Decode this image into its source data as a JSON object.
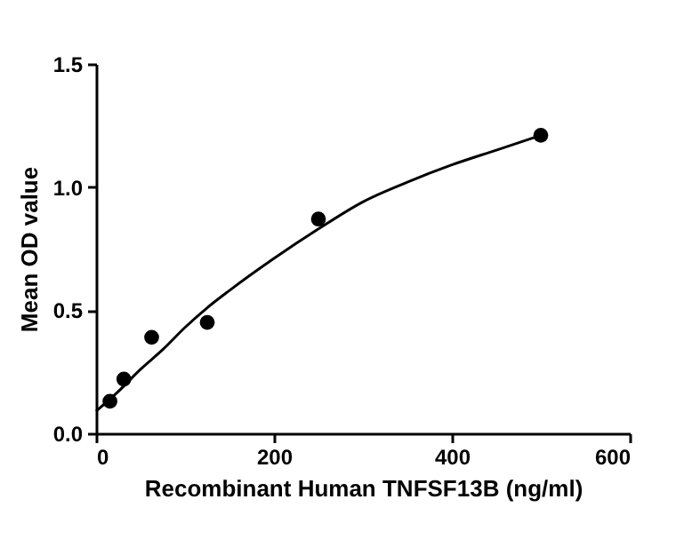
{
  "chart_data": {
    "type": "scatter",
    "xlabel": "Recombinant Human TNFSF13B (ng/ml)",
    "ylabel": "Mean OD value",
    "xlim": [
      0,
      600
    ],
    "xticks": [
      0,
      200,
      400,
      600
    ],
    "ylim": [
      0,
      1.5
    ],
    "yticks": [
      {
        "value": 0,
        "label": "0.0"
      },
      {
        "value": 0.5,
        "label": "0.5"
      },
      {
        "value": 1,
        "label": "1.0"
      },
      {
        "value": 1.5,
        "label": "1.5"
      }
    ],
    "grid": false,
    "marker": "circle",
    "series": [
      {
        "color": "#000000",
        "x": [
          15.6,
          31.25,
          62.5,
          125,
          250,
          500
        ],
        "values": [
          0.13,
          0.22,
          0.39,
          0.45,
          0.87,
          1.21
        ]
      },
      {
        "type": "line",
        "color": "#000000",
        "line_style": "solid",
        "marker": "none",
        "x": [
          0,
          25,
          50,
          75,
          100,
          125,
          150,
          200,
          250,
          300,
          350,
          400,
          450,
          500
        ],
        "values": [
          0.09,
          0.17,
          0.26,
          0.34,
          0.43,
          0.51,
          0.58,
          0.71,
          0.83,
          0.94,
          1.02,
          1.09,
          1.15,
          1.21
        ]
      }
    ]
  }
}
